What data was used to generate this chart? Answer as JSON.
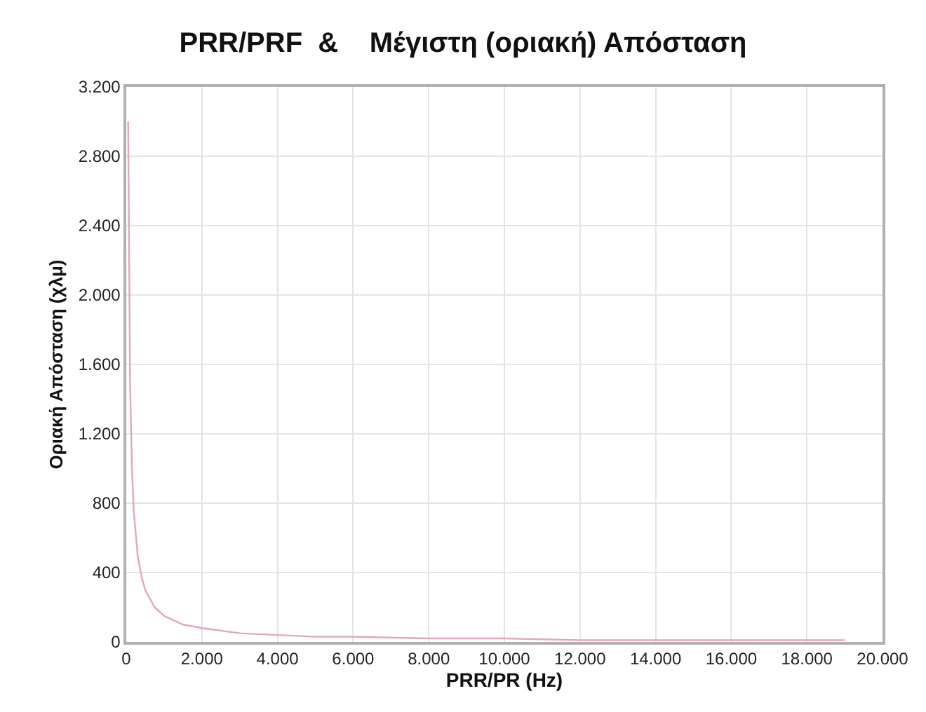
{
  "chart_data": {
    "type": "line",
    "title": "PRR/PRF  &    Μέγιστη (οριακή) Απόσταση",
    "xlabel": "PRR/PR (Hz)",
    "ylabel": "Οριακή Απόσταση (χλμ)",
    "x": [
      50,
      100,
      150,
      200,
      300,
      400,
      500,
      750,
      1000,
      1500,
      2000,
      3000,
      4000,
      5000,
      6000,
      8000,
      10000,
      12000,
      15000,
      19000
    ],
    "series": [
      {
        "color": "#e0a8b8",
        "values": [
          3000,
          1500,
          1000,
          750,
          500,
          380,
          300,
          200,
          150,
          100,
          80,
          50,
          40,
          30,
          30,
          20,
          20,
          10,
          10,
          10
        ]
      }
    ],
    "xlim": [
      0,
      20000
    ],
    "xticks": [
      0,
      {
        "value": 2000,
        "label": "2.000"
      },
      {
        "value": 4000,
        "label": "4.000"
      },
      {
        "value": 6000,
        "label": "6.000"
      },
      {
        "value": 8000,
        "label": "8.000"
      },
      {
        "value": 10000,
        "label": "10.000"
      },
      {
        "value": 12000,
        "label": "12.000"
      },
      {
        "value": 14000,
        "label": "14.000"
      },
      {
        "value": 16000,
        "label": "16.000"
      },
      {
        "value": 18000,
        "label": "18.000"
      },
      {
        "value": 20000,
        "label": "20.000"
      }
    ],
    "ylim": [
      0,
      3200
    ],
    "yticks": [
      0,
      400,
      800,
      {
        "value": 1200,
        "label": "1.200"
      },
      {
        "value": 1600,
        "label": "1.600"
      },
      {
        "value": 2000,
        "label": "2.000"
      },
      {
        "value": 2400,
        "label": "2.400"
      },
      {
        "value": 2800,
        "label": "2.800"
      },
      {
        "value": 3200,
        "label": "3.200"
      }
    ],
    "grid": true,
    "marker": "none",
    "line_style": "solid"
  }
}
